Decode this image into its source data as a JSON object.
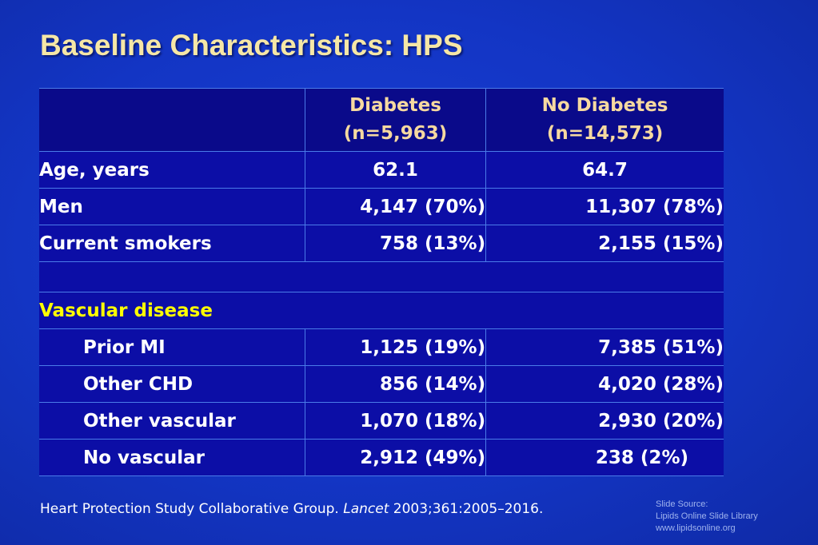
{
  "slide": {
    "title": "Baseline Characteristics: HPS"
  },
  "table": {
    "header": {
      "col2_line1": "Diabetes",
      "col2_line2": "(n=5,963)",
      "col3_line1": "No Diabetes",
      "col3_line2": "(n=14,573)"
    },
    "rows": [
      {
        "label": "Age, years",
        "diabetes": "62.1",
        "no_diabetes": "64.7"
      },
      {
        "label": "Men",
        "diabetes": "4,147 (70%)",
        "no_diabetes": "11,307 (78%)"
      },
      {
        "label": "Current smokers",
        "diabetes": "758 (13%)",
        "no_diabetes": "2,155 (15%)"
      },
      {
        "label": "Vascular disease"
      },
      {
        "label": "Prior MI",
        "diabetes": "1,125 (19%)",
        "no_diabetes": "7,385 (51%)"
      },
      {
        "label": "Other CHD",
        "diabetes": "856 (14%)",
        "no_diabetes": "4,020 (28%)"
      },
      {
        "label": "Other vascular",
        "diabetes": "1,070 (18%)",
        "no_diabetes": "2,930 (20%)"
      },
      {
        "label": "No vascular",
        "diabetes": "2,912 (49%)",
        "no_diabetes": "238 (2%)"
      }
    ]
  },
  "citation": {
    "authors": "Heart Protection Study Collaborative Group.",
    "journal": "Lancet",
    "details": "2003;361:2005–2016."
  },
  "source": {
    "line1": "Slide Source:",
    "line2": "Lipids Online Slide Library",
    "line3": "www.lipidsonline.org"
  },
  "colors": {
    "background": "#1335c4",
    "title": "#f6e7a6",
    "header_text": "#f6d9a0",
    "highlight": "#ffff00"
  }
}
